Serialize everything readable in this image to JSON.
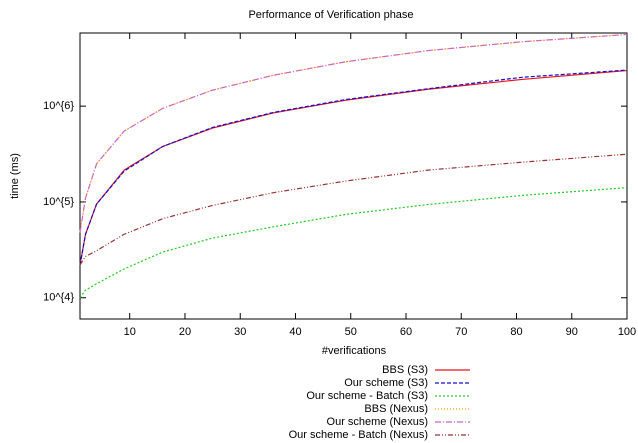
{
  "chart_data": {
    "type": "line",
    "title": "Performance of Verification phase",
    "xlabel": "#verifications",
    "ylabel": "time (ms)",
    "x": [
      1,
      2,
      4,
      9,
      16,
      25,
      36,
      49,
      64,
      81,
      100
    ],
    "xlim": [
      1,
      100
    ],
    "xticks": [
      10,
      20,
      30,
      40,
      50,
      60,
      70,
      80,
      90,
      100
    ],
    "ylim": [
      6000,
      5800000
    ],
    "log_y": true,
    "yticks": [
      {
        "value": 10000,
        "label": "10^{4}"
      },
      {
        "value": 100000,
        "label": "10^{5}"
      },
      {
        "value": 1000000,
        "label": "10^{6}"
      }
    ],
    "legend": "bottom",
    "series": [
      {
        "name": "BBS (S3)",
        "color": "#e8141c",
        "dash": "none",
        "values": [
          22000,
          46000,
          95000,
          215000,
          380000,
          590000,
          850000,
          1150000,
          1500000,
          1900000,
          2350000
        ]
      },
      {
        "name": "Our scheme (S3)",
        "color": "#1010d0",
        "dash": "4,2",
        "values": [
          22000,
          46000,
          95000,
          210000,
          380000,
          600000,
          860000,
          1170000,
          1520000,
          2000000,
          2380000
        ]
      },
      {
        "name": "Our scheme - Batch (S3)",
        "color": "#22cc22",
        "dash": "2,2",
        "values": [
          10000,
          12000,
          14000,
          20000,
          30000,
          42000,
          55000,
          74000,
          94000,
          117000,
          141000
        ]
      },
      {
        "name": "BBS (Nexus)",
        "color": "#ff9900",
        "dash": "1,2",
        "values": [
          48000,
          110000,
          250000,
          550000,
          950000,
          1470000,
          2100000,
          2900000,
          3800000,
          4700000,
          5600000
        ]
      },
      {
        "name": "Our scheme (Nexus)",
        "color": "#cc66cc",
        "dash": "6,2,1,2",
        "values": [
          48000,
          110000,
          250000,
          550000,
          950000,
          1470000,
          2100000,
          2900000,
          3800000,
          4700000,
          5600000
        ]
      },
      {
        "name": "Our scheme - Batch (Nexus)",
        "color": "#993333",
        "dash": "5,2,1,2,1,2",
        "values": [
          22000,
          27000,
          31000,
          46000,
          67000,
          92000,
          125000,
          165000,
          215000,
          260000,
          315000
        ]
      }
    ]
  }
}
